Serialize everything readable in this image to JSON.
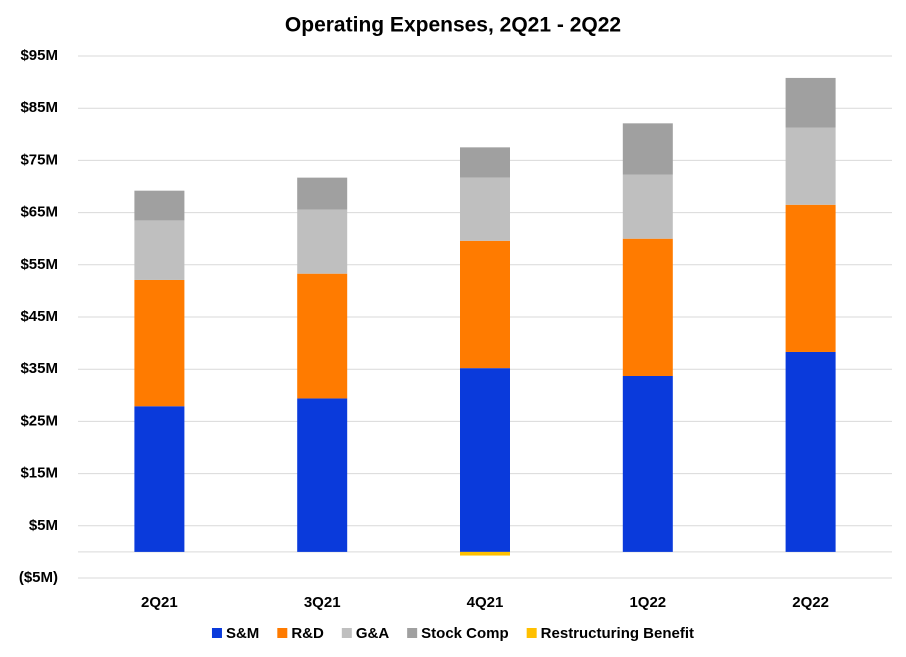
{
  "chart_data": {
    "type": "stacked_bar",
    "title": "Operating Expenses, 2Q21 - 2Q22",
    "categories": [
      "2Q21",
      "3Q21",
      "4Q21",
      "1Q22",
      "2Q22"
    ],
    "series": [
      {
        "name": "S&M",
        "color": "#0a3adb",
        "values": [
          27.9,
          29.4,
          35.2,
          33.7,
          38.3
        ]
      },
      {
        "name": "R&D",
        "color": "#ff7b00",
        "values": [
          24.2,
          23.9,
          24.4,
          26.3,
          28.2
        ]
      },
      {
        "name": "G&A",
        "color": "#bfbfbf",
        "values": [
          11.4,
          12.3,
          12.1,
          12.3,
          14.8
        ]
      },
      {
        "name": "Stock Comp",
        "color": "#a0a0a0",
        "values": [
          5.7,
          6.1,
          5.8,
          9.8,
          9.5
        ]
      },
      {
        "name": "Restructuring Benefit",
        "color": "#ffc000",
        "values": [
          0,
          0,
          -0.7,
          0,
          0
        ]
      }
    ],
    "ylim": [
      -5,
      95
    ],
    "yticks": [
      {
        "value": -5,
        "label": "($5M)"
      },
      {
        "value": 5,
        "label": "$5M"
      },
      {
        "value": 15,
        "label": "$15M"
      },
      {
        "value": 25,
        "label": "$25M"
      },
      {
        "value": 35,
        "label": "$35M"
      },
      {
        "value": 45,
        "label": "$45M"
      },
      {
        "value": 55,
        "label": "$55M"
      },
      {
        "value": 65,
        "label": "$65M"
      },
      {
        "value": 75,
        "label": "$75M"
      },
      {
        "value": 85,
        "label": "$85M"
      },
      {
        "value": 95,
        "label": "$95M"
      }
    ],
    "negative_tick_color": "#ff0000",
    "grid": true,
    "legend": "bottom"
  }
}
